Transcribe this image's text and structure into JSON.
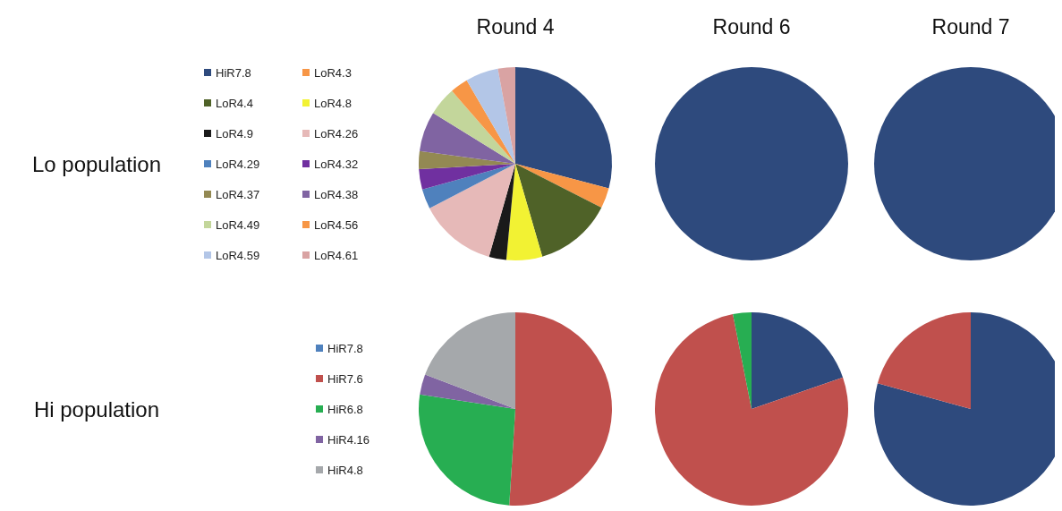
{
  "chart_data": [
    {
      "type": "pie",
      "title": "Round 4",
      "ylabel": "Lo population",
      "legend": "left",
      "categories": [
        "HiR7.8",
        "LoR4.3",
        "LoR4.4",
        "LoR4.8",
        "LoR4.9",
        "LoR4.26",
        "LoR4.29",
        "LoR4.32",
        "LoR4.37",
        "LoR4.38",
        "LoR4.49",
        "LoR4.56",
        "LoR4.59",
        "LoR4.61"
      ],
      "values": [
        29.1,
        3.4,
        13,
        6,
        2.9,
        13,
        3.3,
        3.4,
        3,
        6.7,
        4.8,
        3,
        5.5,
        2.9
      ],
      "colors": [
        "#2e4a7d",
        "#f79646",
        "#4f6228",
        "#f2f233",
        "#1a1a1a",
        "#e6b9b8",
        "#4f81bd",
        "#7030a0",
        "#938953",
        "#8064a2",
        "#c3d69b",
        "#f79646",
        "#b3c6e7",
        "#d9a3a3"
      ]
    },
    {
      "type": "pie",
      "title": "Round 6",
      "categories": [
        null
      ],
      "values": [
        100
      ],
      "colors": [
        "#2e4a7d"
      ]
    },
    {
      "type": "pie",
      "title": "Round 7",
      "categories": [
        null
      ],
      "values": [
        100
      ],
      "colors": [
        "#2e4a7d"
      ]
    },
    {
      "type": "pie",
      "ylabel": "Hi population",
      "legend": "left",
      "categories": [
        "HiR7.8",
        "HiR7.6",
        "HiR6.8",
        "HiR4.16",
        "HiR4.8"
      ],
      "values": [
        0,
        51,
        26.4,
        3.4,
        19.2
      ],
      "colors": [
        "#4f81bd",
        "#c0504d",
        "#27ae52",
        "#8064a2",
        "#a5a8ab"
      ]
    },
    {
      "type": "pie",
      "categories": [
        null,
        null,
        null
      ],
      "values": [
        19.7,
        77.2,
        3.1
      ],
      "colors": [
        "#2e4a7d",
        "#c0504d",
        "#27ae52"
      ]
    },
    {
      "type": "pie",
      "categories": [
        null,
        null
      ],
      "values": [
        79.3,
        20.7
      ],
      "colors": [
        "#2e4a7d",
        "#c0504d"
      ]
    }
  ]
}
